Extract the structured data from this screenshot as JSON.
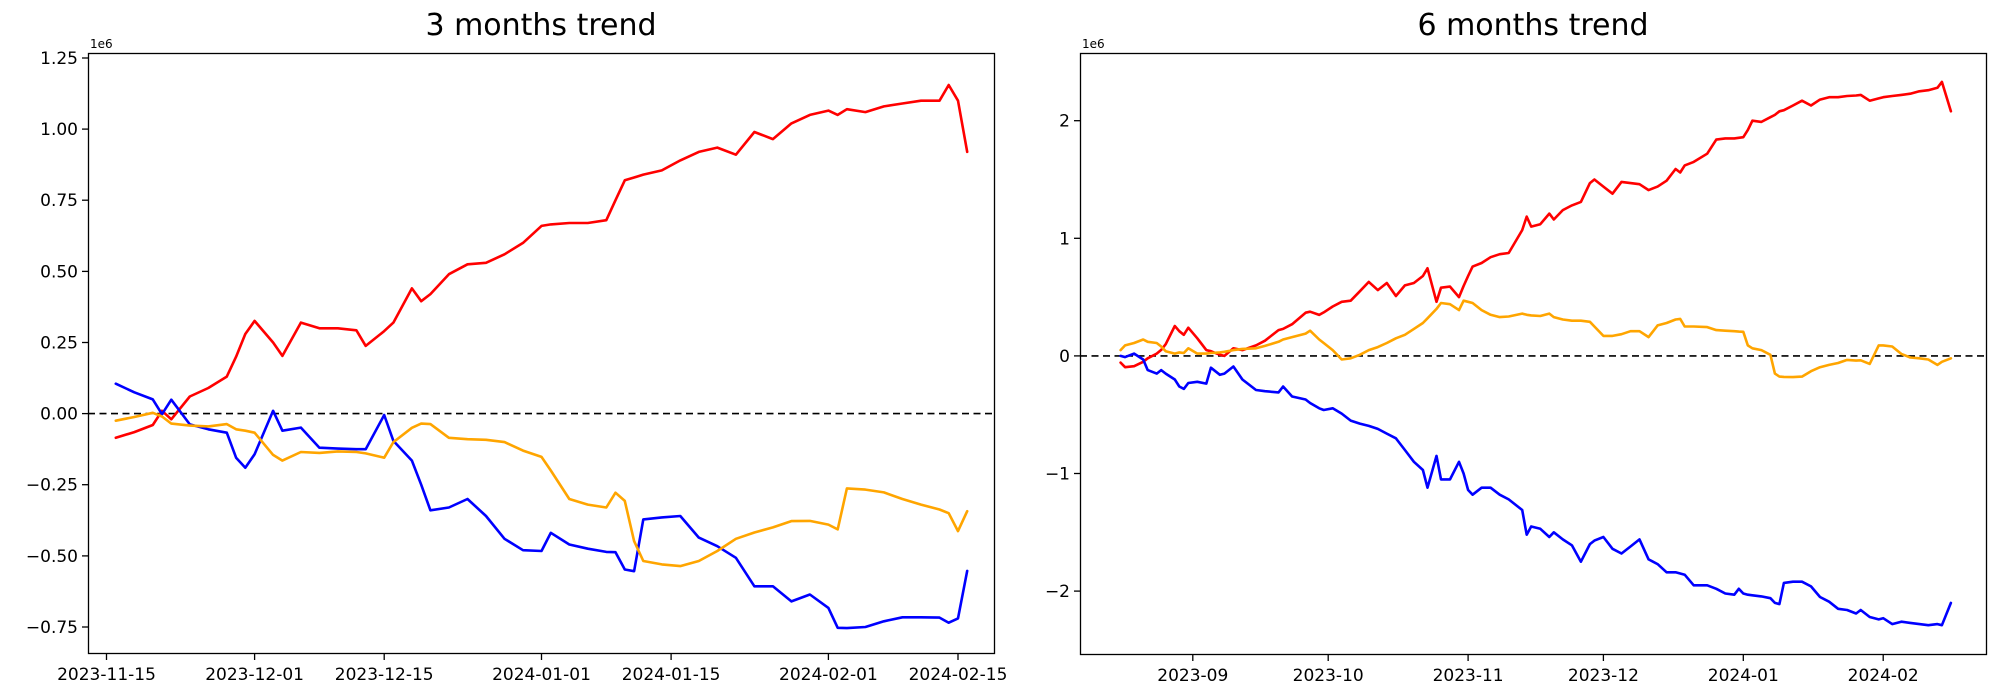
{
  "figure": {
    "background": "#ffffff"
  },
  "charts": [
    {
      "title": "3 months trend",
      "offset_label": "1e6",
      "type": "line",
      "legend": null,
      "grid": false,
      "zero_line": {
        "style": "dashed",
        "color": "#000000",
        "y": 0
      },
      "xlim": [
        "2023-11-13",
        "2024-02-19"
      ],
      "ylim": [
        -845000,
        1267600
      ],
      "x_ticks": [
        "2023-11-15",
        "2023-12-01",
        "2023-12-15",
        "2024-01-01",
        "2024-01-15",
        "2024-02-01",
        "2024-02-15"
      ],
      "x_tick_labels": [
        "2023-11-15",
        "2023-12-01",
        "2023-12-15",
        "2024-01-01",
        "2024-01-15",
        "2024-02-01",
        "2024-02-15"
      ],
      "y_ticks": [
        1250000,
        1000000,
        750000,
        500000,
        250000,
        0,
        -250000,
        -500000,
        -750000
      ],
      "y_tick_labels": [
        "1.25",
        "1.00",
        "0.75",
        "0.50",
        "0.25",
        "0.00",
        "−0.25",
        "−0.50",
        "−0.75"
      ],
      "series": [
        {
          "name": "red",
          "color": "#ff0000"
        },
        {
          "name": "blue",
          "color": "#0000ff"
        },
        {
          "name": "orange",
          "color": "#ffa500"
        }
      ],
      "columns": [
        "date",
        "red",
        "blue",
        "orange"
      ],
      "rows": [
        [
          "2023-11-16",
          -85000,
          105000,
          -25000
        ],
        [
          "2023-11-18",
          -65000,
          75000,
          -12000
        ],
        [
          "2023-11-20",
          -40000,
          50000,
          3000
        ],
        [
          "2023-11-21",
          10000,
          -2000,
          -10000
        ],
        [
          "2023-11-22",
          -20000,
          49000,
          -35000
        ],
        [
          "2023-11-24",
          60000,
          -38000,
          -42000
        ],
        [
          "2023-11-26",
          90000,
          -55000,
          -45000
        ],
        [
          "2023-11-28",
          130000,
          -67000,
          -37000
        ],
        [
          "2023-11-29",
          200000,
          -155000,
          -55000
        ],
        [
          "2023-11-30",
          280000,
          -190000,
          -60000
        ],
        [
          "2023-12-01",
          326000,
          -143000,
          -67000
        ],
        [
          "2023-12-03",
          250000,
          10000,
          -145000
        ],
        [
          "2023-12-04",
          203000,
          -60000,
          -165000
        ],
        [
          "2023-12-06",
          320000,
          -49000,
          -135000
        ],
        [
          "2023-12-08",
          300000,
          -120000,
          -138000
        ],
        [
          "2023-12-10",
          300000,
          -123000,
          -133000
        ],
        [
          "2023-12-12",
          293000,
          -125000,
          -135000
        ],
        [
          "2023-12-13",
          238000,
          -125000,
          -140000
        ],
        [
          "2023-12-15",
          290000,
          -5000,
          -155000
        ],
        [
          "2023-12-16",
          320000,
          -96000,
          -100000
        ],
        [
          "2023-12-18",
          440000,
          -165000,
          -50000
        ],
        [
          "2023-12-19",
          395000,
          -250000,
          -35000
        ],
        [
          "2023-12-20",
          420000,
          -340000,
          -37000
        ],
        [
          "2023-12-22",
          490000,
          -330000,
          -85000
        ],
        [
          "2023-12-24",
          525000,
          -300000,
          -90000
        ],
        [
          "2023-12-26",
          530000,
          -360000,
          -92000
        ],
        [
          "2023-12-28",
          560000,
          -440000,
          -100000
        ],
        [
          "2023-12-30",
          600000,
          -480000,
          -130000
        ],
        [
          "2024-01-01",
          660000,
          -483000,
          -152000
        ],
        [
          "2024-01-02",
          665000,
          -419000,
          -200000
        ],
        [
          "2024-01-04",
          670000,
          -460000,
          -300000
        ],
        [
          "2024-01-06",
          670000,
          -475000,
          -320000
        ],
        [
          "2024-01-08",
          680000,
          -486000,
          -330000
        ],
        [
          "2024-01-09",
          750000,
          -487000,
          -278000
        ],
        [
          "2024-01-10",
          820000,
          -548000,
          -307000
        ],
        [
          "2024-01-11",
          830000,
          -554000,
          -448000
        ],
        [
          "2024-01-12",
          840000,
          -372000,
          -518000
        ],
        [
          "2024-01-14",
          855000,
          -365000,
          -530000
        ],
        [
          "2024-01-16",
          890000,
          -360000,
          -536000
        ],
        [
          "2024-01-18",
          920000,
          -436000,
          -518000
        ],
        [
          "2024-01-20",
          935000,
          -466000,
          -483000
        ],
        [
          "2024-01-22",
          910000,
          -507000,
          -440000
        ],
        [
          "2024-01-24",
          990000,
          -607000,
          -418000
        ],
        [
          "2024-01-26",
          965000,
          -607000,
          -400000
        ],
        [
          "2024-01-28",
          1020000,
          -660000,
          -378000
        ],
        [
          "2024-01-30",
          1050000,
          -636000,
          -377000
        ],
        [
          "2024-02-01",
          1065000,
          -683000,
          -390000
        ],
        [
          "2024-02-02",
          1050000,
          -753000,
          -407000
        ],
        [
          "2024-02-03",
          1070000,
          -754000,
          -263000
        ],
        [
          "2024-02-05",
          1060000,
          -750000,
          -267000
        ],
        [
          "2024-02-07",
          1080000,
          -730000,
          -277000
        ],
        [
          "2024-02-09",
          1090000,
          -716000,
          -300000
        ],
        [
          "2024-02-11",
          1100000,
          -716000,
          -320000
        ],
        [
          "2024-02-13",
          1100000,
          -717000,
          -337000
        ],
        [
          "2024-02-14",
          1155000,
          -735000,
          -350000
        ],
        [
          "2024-02-15",
          1100000,
          -720000,
          -413000
        ],
        [
          "2024-02-16",
          920000,
          -553000,
          -343000
        ]
      ]
    },
    {
      "title": "6 months trend",
      "offset_label": "1e6",
      "type": "line",
      "legend": null,
      "grid": false,
      "zero_line": {
        "style": "dashed",
        "color": "#000000",
        "y": 0
      },
      "xlim": [
        "2023-08-07",
        "2024-02-24"
      ],
      "ylim": [
        -2543000,
        2576000
      ],
      "x_ticks": [
        "2023-09-01",
        "2023-10-01",
        "2023-11-01",
        "2023-12-01",
        "2024-01-01",
        "2024-02-01"
      ],
      "x_tick_labels": [
        "2023-09",
        "2023-10",
        "2023-11",
        "2023-12",
        "2024-01",
        "2024-02"
      ],
      "y_ticks": [
        2000000,
        1000000,
        0,
        -1000000,
        -2000000
      ],
      "y_tick_labels": [
        "2",
        "1",
        "0",
        "−1",
        "−2"
      ],
      "series": [
        {
          "name": "red",
          "color": "#ff0000"
        },
        {
          "name": "blue",
          "color": "#0000ff"
        },
        {
          "name": "orange",
          "color": "#ffa500"
        }
      ],
      "columns": [
        "date",
        "red",
        "blue",
        "orange"
      ],
      "rows": [
        [
          "2023-08-16",
          -57000,
          0,
          50000
        ],
        [
          "2023-08-17",
          -96000,
          -10000,
          90000
        ],
        [
          "2023-08-19",
          -87000,
          20000,
          110000
        ],
        [
          "2023-08-21",
          -50000,
          -30000,
          140000
        ],
        [
          "2023-08-22",
          -20000,
          -120000,
          120000
        ],
        [
          "2023-08-24",
          20000,
          -150000,
          110000
        ],
        [
          "2023-08-25",
          51000,
          -120000,
          80000
        ],
        [
          "2023-08-26",
          100000,
          -150000,
          40000
        ],
        [
          "2023-08-28",
          255000,
          -200000,
          20000
        ],
        [
          "2023-08-29",
          210000,
          -260000,
          30000
        ],
        [
          "2023-08-30",
          180000,
          -280000,
          25000
        ],
        [
          "2023-08-31",
          240000,
          -230000,
          65000
        ],
        [
          "2023-09-02",
          150000,
          -220000,
          20000
        ],
        [
          "2023-09-04",
          50000,
          -235000,
          20000
        ],
        [
          "2023-09-05",
          40000,
          -100000,
          25000
        ],
        [
          "2023-09-07",
          10000,
          -160000,
          30000
        ],
        [
          "2023-09-08",
          0,
          -150000,
          35000
        ],
        [
          "2023-09-10",
          65000,
          -90000,
          50000
        ],
        [
          "2023-09-12",
          50000,
          -200000,
          60000
        ],
        [
          "2023-09-15",
          90000,
          -290000,
          65000
        ],
        [
          "2023-09-17",
          130000,
          -300000,
          85000
        ],
        [
          "2023-09-20",
          220000,
          -310000,
          120000
        ],
        [
          "2023-09-21",
          230000,
          -260000,
          140000
        ],
        [
          "2023-09-23",
          270000,
          -345000,
          160000
        ],
        [
          "2023-09-26",
          368000,
          -370000,
          190000
        ],
        [
          "2023-09-27",
          376000,
          -400000,
          215000
        ],
        [
          "2023-09-29",
          349000,
          -445000,
          140000
        ],
        [
          "2023-09-30",
          370000,
          -460000,
          110000
        ],
        [
          "2023-10-02",
          420000,
          -445000,
          50000
        ],
        [
          "2023-10-04",
          460000,
          -490000,
          -30000
        ],
        [
          "2023-10-06",
          470000,
          -550000,
          -20000
        ],
        [
          "2023-10-08",
          550000,
          -575000,
          10000
        ],
        [
          "2023-10-10",
          630000,
          -595000,
          50000
        ],
        [
          "2023-10-12",
          560000,
          -620000,
          75000
        ],
        [
          "2023-10-14",
          620000,
          -660000,
          110000
        ],
        [
          "2023-10-16",
          510000,
          -700000,
          150000
        ],
        [
          "2023-10-18",
          600000,
          -800000,
          180000
        ],
        [
          "2023-10-20",
          620000,
          -900000,
          230000
        ],
        [
          "2023-10-22",
          680000,
          -970000,
          280000
        ],
        [
          "2023-10-23",
          745000,
          -1120000,
          320000
        ],
        [
          "2023-10-25",
          460000,
          -850000,
          400000
        ],
        [
          "2023-10-26",
          580000,
          -1050000,
          450000
        ],
        [
          "2023-10-28",
          590000,
          -1050000,
          440000
        ],
        [
          "2023-10-30",
          500000,
          -900000,
          390000
        ],
        [
          "2023-10-31",
          595000,
          -1000000,
          470000
        ],
        [
          "2023-11-01",
          680000,
          -1140000,
          460000
        ],
        [
          "2023-11-02",
          760000,
          -1180000,
          450000
        ],
        [
          "2023-11-04",
          790000,
          -1120000,
          390000
        ],
        [
          "2023-11-06",
          840000,
          -1120000,
          350000
        ],
        [
          "2023-11-08",
          865000,
          -1180000,
          330000
        ],
        [
          "2023-11-10",
          875000,
          -1220000,
          335000
        ],
        [
          "2023-11-13",
          1070000,
          -1310000,
          360000
        ],
        [
          "2023-11-14",
          1185000,
          -1520000,
          350000
        ],
        [
          "2023-11-15",
          1100000,
          -1450000,
          345000
        ],
        [
          "2023-11-17",
          1120000,
          -1470000,
          340000
        ],
        [
          "2023-11-19",
          1210000,
          -1540000,
          360000
        ],
        [
          "2023-11-20",
          1160000,
          -1500000,
          330000
        ],
        [
          "2023-11-22",
          1240000,
          -1560000,
          310000
        ],
        [
          "2023-11-24",
          1280000,
          -1610000,
          300000
        ],
        [
          "2023-11-26",
          1310000,
          -1750000,
          300000
        ],
        [
          "2023-11-28",
          1470000,
          -1600000,
          290000
        ],
        [
          "2023-11-29",
          1500000,
          -1570000,
          250000
        ],
        [
          "2023-12-01",
          1440000,
          -1540000,
          170000
        ],
        [
          "2023-12-03",
          1380000,
          -1640000,
          170000
        ],
        [
          "2023-12-05",
          1480000,
          -1680000,
          185000
        ],
        [
          "2023-12-07",
          1470000,
          -1620000,
          210000
        ],
        [
          "2023-12-09",
          1460000,
          -1560000,
          210000
        ],
        [
          "2023-12-11",
          1410000,
          -1730000,
          160000
        ],
        [
          "2023-12-13",
          1440000,
          -1770000,
          260000
        ],
        [
          "2023-12-15",
          1490000,
          -1840000,
          280000
        ],
        [
          "2023-12-17",
          1590000,
          -1840000,
          310000
        ],
        [
          "2023-12-18",
          1560000,
          -1850000,
          315000
        ],
        [
          "2023-12-19",
          1620000,
          -1860000,
          250000
        ],
        [
          "2023-12-21",
          1650000,
          -1950000,
          250000
        ],
        [
          "2023-12-24",
          1720000,
          -1950000,
          245000
        ],
        [
          "2023-12-26",
          1840000,
          -1980000,
          220000
        ],
        [
          "2023-12-28",
          1850000,
          -2020000,
          215000
        ],
        [
          "2023-12-30",
          1850000,
          -2030000,
          210000
        ],
        [
          "2023-12-31",
          1855000,
          -1980000,
          207000
        ],
        [
          "2024-01-01",
          1860000,
          -2020000,
          205000
        ],
        [
          "2024-01-02",
          1920000,
          -2030000,
          90000
        ],
        [
          "2024-01-03",
          2000000,
          -2035000,
          65000
        ],
        [
          "2024-01-05",
          1990000,
          -2045000,
          50000
        ],
        [
          "2024-01-07",
          2030000,
          -2060000,
          10000
        ],
        [
          "2024-01-08",
          2050000,
          -2100000,
          -150000
        ],
        [
          "2024-01-09",
          2080000,
          -2110000,
          -176000
        ],
        [
          "2024-01-10",
          2090000,
          -1930000,
          -178000
        ],
        [
          "2024-01-12",
          2130000,
          -1920000,
          -180000
        ],
        [
          "2024-01-14",
          2170000,
          -1920000,
          -176000
        ],
        [
          "2024-01-16",
          2130000,
          -1960000,
          -130000
        ],
        [
          "2024-01-18",
          2180000,
          -2050000,
          -96000
        ],
        [
          "2024-01-20",
          2200000,
          -2090000,
          -76000
        ],
        [
          "2024-01-22",
          2200000,
          -2150000,
          -60000
        ],
        [
          "2024-01-24",
          2210000,
          -2160000,
          -34000
        ],
        [
          "2024-01-26",
          2215000,
          -2190000,
          -40000
        ],
        [
          "2024-01-27",
          2220000,
          -2160000,
          -37000
        ],
        [
          "2024-01-29",
          2170000,
          -2220000,
          -68000
        ],
        [
          "2024-01-31",
          2190000,
          -2240000,
          90000
        ],
        [
          "2024-02-01",
          2200000,
          -2230000,
          90000
        ],
        [
          "2024-02-03",
          2210000,
          -2280000,
          80000
        ],
        [
          "2024-02-05",
          2220000,
          -2260000,
          17000
        ],
        [
          "2024-02-07",
          2230000,
          -2270000,
          -13000
        ],
        [
          "2024-02-09",
          2250000,
          -2280000,
          -20000
        ],
        [
          "2024-02-11",
          2260000,
          -2290000,
          -30000
        ],
        [
          "2024-02-13",
          2280000,
          -2280000,
          -76000
        ],
        [
          "2024-02-14",
          2330000,
          -2290000,
          -50000
        ],
        [
          "2024-02-16",
          2080000,
          -2100000,
          -20000
        ]
      ]
    }
  ]
}
